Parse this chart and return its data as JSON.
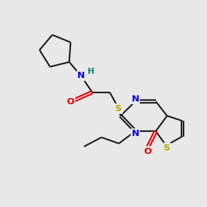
{
  "background_color": "#e8e8e8",
  "bond_color": "#1a1a1a",
  "atom_colors": {
    "N": "#0000ee",
    "O": "#ee0000",
    "S_thio": "#aaaa00",
    "S_ring": "#aaaa00",
    "H": "#008080",
    "C": "#1a1a1a"
  },
  "figsize": [
    3.0,
    3.0
  ],
  "dpi": 100,
  "xlim": [
    0,
    10
  ],
  "ylim": [
    0,
    10
  ]
}
